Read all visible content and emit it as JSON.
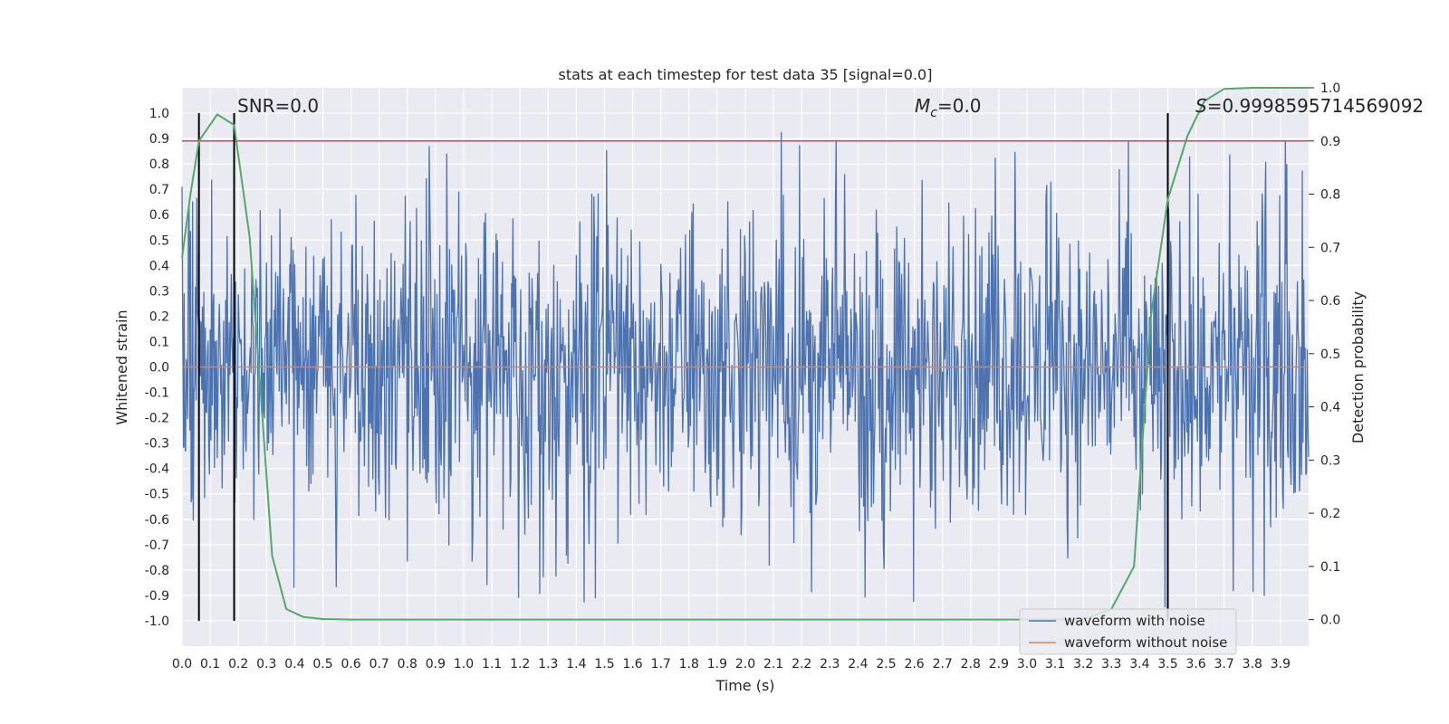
{
  "chart_data": {
    "type": "line",
    "title": "stats at each timestep for test data 35 [signal=0.0]",
    "xlabel": "Time (s)",
    "ylabel": "Whitened strain",
    "y2label": "Detection probability",
    "xlim": [
      0.0,
      4.0
    ],
    "ylim": [
      -1.1,
      1.1
    ],
    "y2lim": [
      -0.05,
      1.0
    ],
    "x_ticks": [
      "0.0",
      "0.1",
      "0.2",
      "0.3",
      "0.4",
      "0.5",
      "0.6",
      "0.7",
      "0.8",
      "0.9",
      "1.0",
      "1.1",
      "1.2",
      "1.3",
      "1.4",
      "1.5",
      "1.6",
      "1.7",
      "1.8",
      "1.9",
      "2.0",
      "2.1",
      "2.2",
      "2.3",
      "2.4",
      "2.5",
      "2.6",
      "2.7",
      "2.8",
      "2.9",
      "3.0",
      "3.1",
      "3.2",
      "3.3",
      "3.4",
      "3.5",
      "3.6",
      "3.7",
      "3.8",
      "3.9"
    ],
    "y_ticks": [
      "1.0",
      "0.9",
      "0.8",
      "0.7",
      "0.6",
      "0.5",
      "0.4",
      "0.3",
      "0.2",
      "0.1",
      "0.0",
      "-0.1",
      "-0.2",
      "-0.3",
      "-0.4",
      "-0.5",
      "-0.6",
      "-0.7",
      "-0.8",
      "-0.9",
      "-1.0"
    ],
    "y2_ticks": [
      "1.0",
      "0.9",
      "0.8",
      "0.7",
      "0.6",
      "0.5",
      "0.4",
      "0.3",
      "0.2",
      "0.1",
      "0.0"
    ],
    "grid": true,
    "annotations": {
      "snr": "SNR=0.0",
      "mc_symbol": "M",
      "mc_sub": "c",
      "mc_value": "=0.0",
      "s_symbol": "S",
      "s_value": "=0.9998595714569092"
    },
    "vertical_lines_x": [
      0.06,
      0.185,
      3.5
    ],
    "threshold_line_y2": 0.9,
    "series": [
      {
        "name": "waveform with noise",
        "color": "#4c72b0",
        "kind": "noise",
        "amplitude_range": [
          -1.0,
          1.0
        ],
        "x_range": [
          0.0,
          4.0
        ]
      },
      {
        "name": "waveform without noise",
        "color": "#dd8452",
        "x": [
          0.0,
          4.0
        ],
        "values": [
          0.0,
          0.0
        ]
      },
      {
        "name": "detection probability",
        "color": "#55a868",
        "axis": "y2",
        "x": [
          0.0,
          0.03,
          0.06,
          0.125,
          0.185,
          0.24,
          0.28,
          0.32,
          0.37,
          0.43,
          0.5,
          0.6,
          1.0,
          2.0,
          2.9,
          3.1,
          3.2,
          3.3,
          3.38,
          3.44,
          3.5,
          3.57,
          3.63,
          3.7,
          3.8,
          3.9,
          4.0
        ],
        "values": [
          0.68,
          0.8,
          0.9,
          0.95,
          0.93,
          0.72,
          0.42,
          0.12,
          0.02,
          0.005,
          0.001,
          0.0,
          0.0,
          0.0,
          0.0,
          0.0,
          0.0,
          0.02,
          0.1,
          0.57,
          0.79,
          0.91,
          0.975,
          0.998,
          1.0,
          1.0,
          1.0
        ]
      }
    ],
    "legend": {
      "position": "lower-right",
      "entries": [
        "waveform with noise",
        "waveform without noise"
      ]
    }
  }
}
